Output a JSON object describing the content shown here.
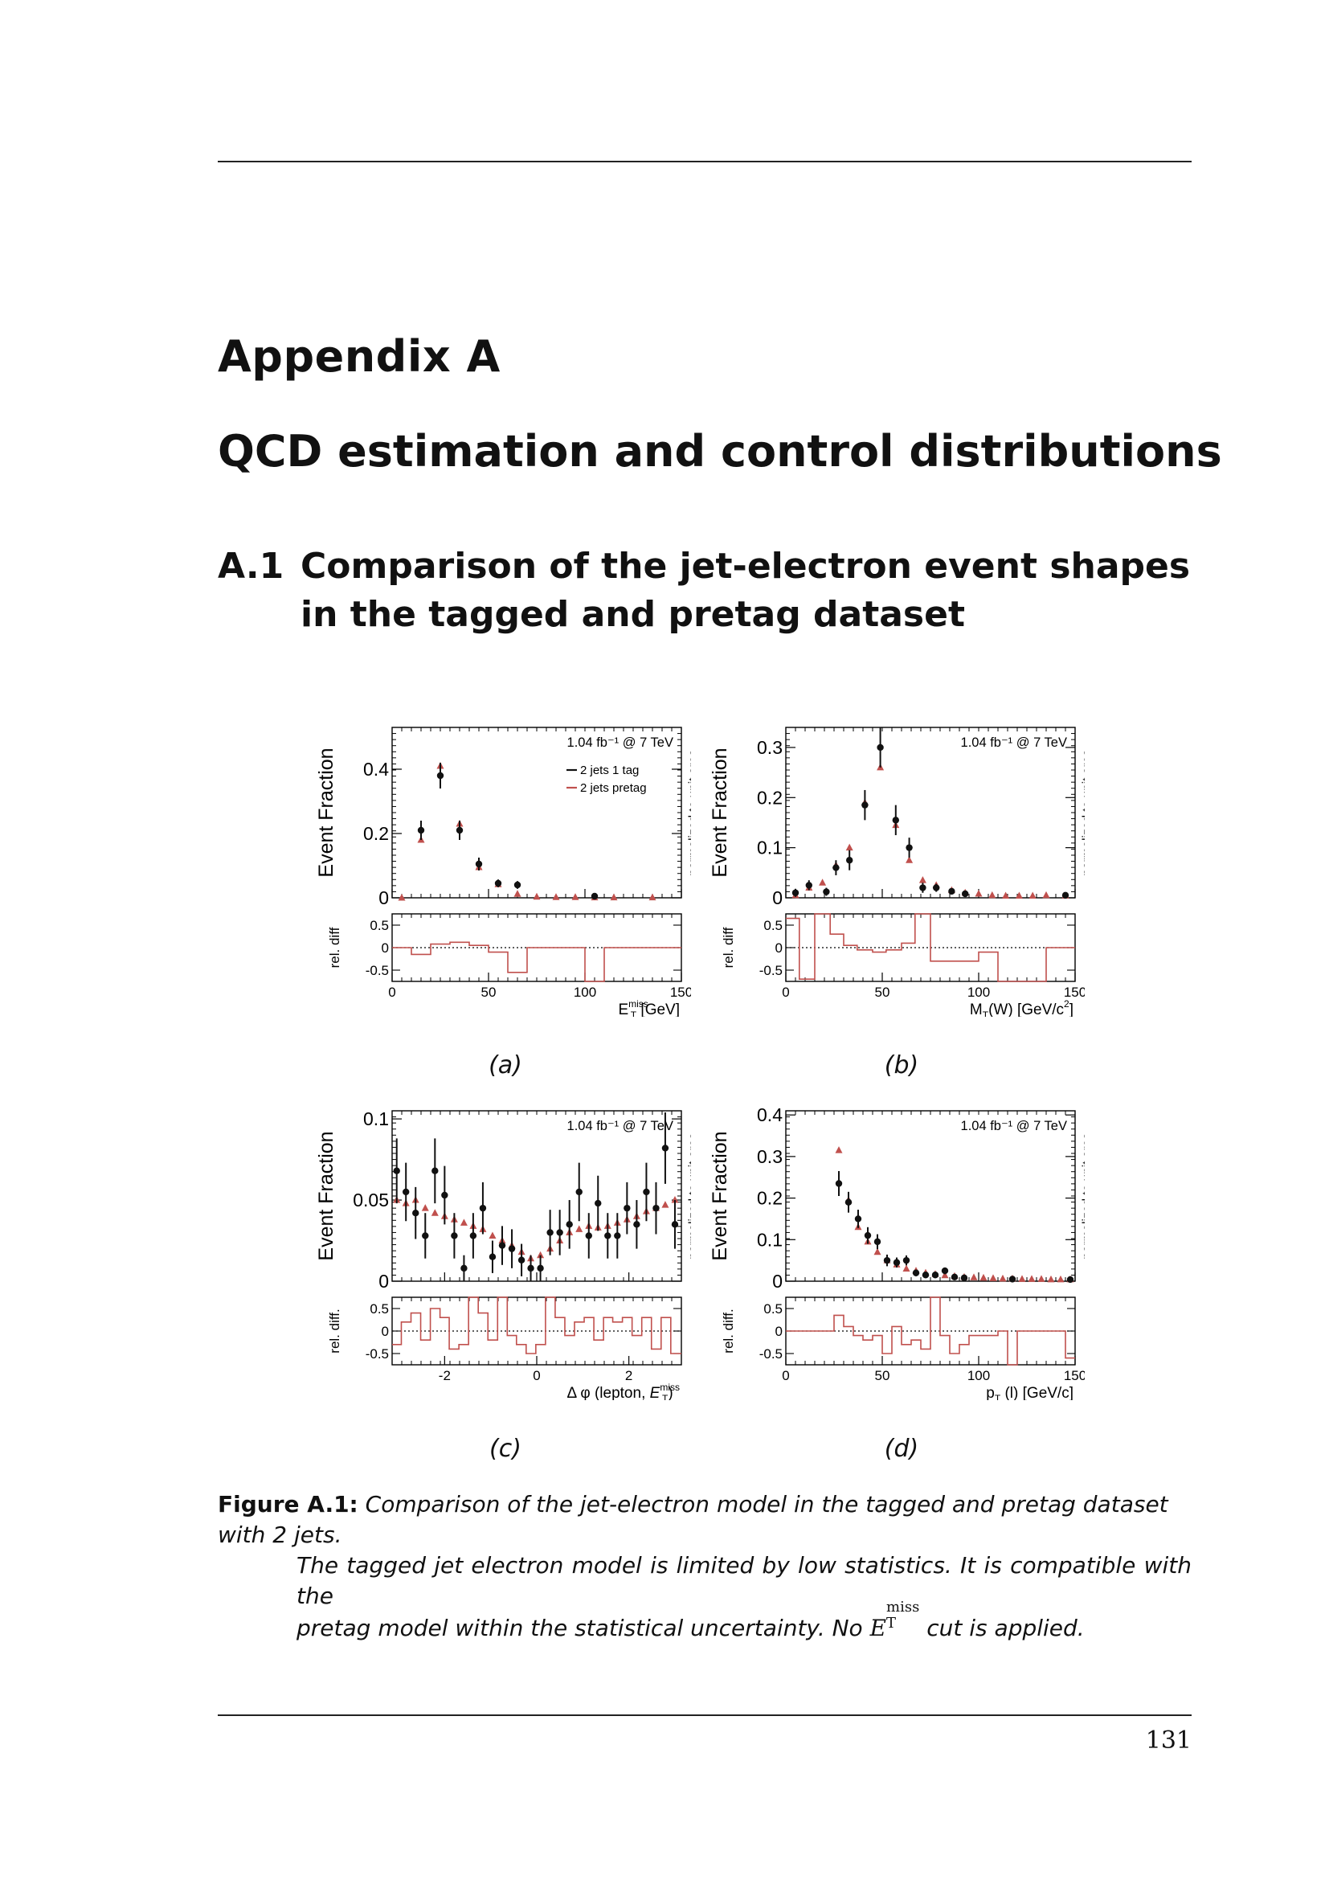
{
  "page": {
    "appendix_label": "Appendix A",
    "chapter_title": "QCD estimation and control distributions",
    "section_number": "A.1",
    "section_title": "Comparison of the jet-electron event shapes in the tagged and pretag dataset",
    "page_number": "131"
  },
  "caption": {
    "label": "Figure A.1:",
    "line1": "Comparison of the jet-electron model in the tagged and pretag dataset with 2 jets.",
    "line2": "The tagged jet electron model is limited by low statistics.  It is compatible with the",
    "line3_pre": "pretag model within the statistical uncertainty.  No ",
    "math_base": "E",
    "math_sup": "miss",
    "math_sub": "T",
    "line3_post": " cut is applied."
  },
  "sublabels": [
    "(a)",
    "(b)",
    "(c)",
    "(d)"
  ],
  "colors": {
    "tagged": "#111111",
    "pretag": "#c0504d"
  },
  "chart_data": [
    {
      "type": "scatter",
      "id": "a",
      "lumi_label": "1.04 fb⁻¹ @ 7 TeV",
      "ylabel": "Event Fraction",
      "ylabel_right": "normalized to unit area",
      "xlabel": "E_T^miss [GeV]",
      "xlabel_base": "E",
      "xlabel_sup": "miss",
      "xlabel_sub": "T",
      "xlabel_post": " [GeV]",
      "xlim": [
        0,
        150
      ],
      "ylim": [
        0,
        0.53
      ],
      "xticks": [
        0,
        50,
        100,
        150
      ],
      "yticks": [
        0,
        0.2,
        0.4
      ],
      "ratio_ylabel": "rel. diff",
      "ratio_ylim": [
        -0.75,
        0.75
      ],
      "ratio_yticks": [
        -0.5,
        0,
        0.5
      ],
      "legend": [
        {
          "name": "2 jets 1 tag"
        },
        {
          "name": "2 jets pretag"
        }
      ],
      "series": [
        {
          "name": "2 jets 1 tag",
          "x": [
            15,
            25,
            35,
            45,
            55,
            65,
            105
          ],
          "y": [
            0.21,
            0.38,
            0.21,
            0.105,
            0.045,
            0.04,
            0.005
          ],
          "err": [
            0.03,
            0.04,
            0.03,
            0.02,
            0.012,
            0.012,
            0.004
          ]
        },
        {
          "name": "2 jets pretag",
          "x": [
            5,
            15,
            25,
            35,
            45,
            55,
            65,
            75,
            85,
            95,
            105,
            115,
            135
          ],
          "y": [
            0.0,
            0.18,
            0.41,
            0.23,
            0.095,
            0.042,
            0.012,
            0.003,
            0.002,
            0.002,
            0.001,
            0.001,
            0.001
          ]
        }
      ],
      "ratio": {
        "edges": [
          0,
          10,
          20,
          30,
          40,
          50,
          60,
          70,
          100,
          110,
          150
        ],
        "values": [
          0,
          -0.15,
          0.08,
          0.12,
          0.05,
          -0.1,
          -0.55,
          0,
          -1.1,
          0
        ]
      }
    },
    {
      "type": "scatter",
      "id": "b",
      "lumi_label": "1.04 fb⁻¹ @ 7 TeV",
      "ylabel": "Event Fraction",
      "ylabel_right": "normalized to unit area",
      "xlabel": "M_T(W) [GeV/c^2]",
      "xlabel_base": "M",
      "xlabel_sub": "T",
      "xlabel_post": "(W) [GeV/c",
      "xlabel_sup2": "2",
      "xlabel_end": "]",
      "xlim": [
        0,
        150
      ],
      "ylim": [
        0,
        0.34
      ],
      "xticks": [
        0,
        50,
        100,
        150
      ],
      "yticks": [
        0,
        0.1,
        0.2,
        0.3
      ],
      "ratio_ylabel": "rel. diff",
      "ratio_ylim": [
        -0.75,
        0.75
      ],
      "ratio_yticks": [
        -0.5,
        0,
        0.5
      ],
      "series": [
        {
          "name": "2 jets 1 tag",
          "x": [
            5,
            12,
            21,
            26,
            33,
            41,
            49,
            57,
            64,
            71,
            78,
            86,
            93,
            145
          ],
          "y": [
            0.01,
            0.025,
            0.012,
            0.06,
            0.075,
            0.185,
            0.3,
            0.155,
            0.1,
            0.02,
            0.02,
            0.013,
            0.008,
            0.005
          ],
          "err": [
            0.008,
            0.01,
            0.008,
            0.015,
            0.02,
            0.03,
            0.04,
            0.03,
            0.02,
            0.01,
            0.008,
            0.006,
            0.004,
            0.003
          ]
        },
        {
          "name": "2 jets pretag",
          "x": [
            5,
            12,
            19,
            26,
            33,
            41,
            49,
            57,
            64,
            71,
            78,
            86,
            93,
            100,
            107,
            114,
            121,
            128,
            135,
            145
          ],
          "y": [
            0.005,
            0.02,
            0.03,
            0.065,
            0.1,
            0.19,
            0.26,
            0.145,
            0.075,
            0.035,
            0.025,
            0.015,
            0.01,
            0.008,
            0.005,
            0.004,
            0.004,
            0.004,
            0.005,
            0.004
          ]
        }
      ],
      "ratio": {
        "edges": [
          0,
          7,
          15,
          23,
          30,
          37,
          45,
          52,
          60,
          67,
          75,
          100,
          110,
          135,
          150
        ],
        "values": [
          0.65,
          -0.7,
          0.8,
          0.3,
          0.05,
          -0.05,
          -0.1,
          -0.05,
          0.1,
          0.9,
          -0.3,
          -0.1,
          -1.2,
          0
        ]
      }
    },
    {
      "type": "scatter",
      "id": "c",
      "lumi_label": "1.04 fb⁻¹ @ 7 TeV",
      "ylabel": "Event Fraction",
      "ylabel_right": "normalized to unit area",
      "xlabel": "Δφ (lepton, E_T^miss)",
      "xlabel_pre": "Δ φ (lepton, ",
      "xlabel_base": "E",
      "xlabel_sup": "miss",
      "xlabel_sub": "T",
      "xlabel_post": ")",
      "xlim": [
        -3.14,
        3.14
      ],
      "ylim": [
        0,
        0.105
      ],
      "xticks": [
        -2,
        0,
        2
      ],
      "yticks": [
        0,
        0.05,
        0.1
      ],
      "ratio_ylabel": "rel. diff.",
      "ratio_ylim": [
        -0.75,
        0.75
      ],
      "ratio_yticks": [
        -0.5,
        0,
        0.5
      ],
      "series": [
        {
          "name": "2 jets 1 tag",
          "x": [
            -3.04,
            -2.84,
            -2.63,
            -2.42,
            -2.21,
            -2.0,
            -1.79,
            -1.58,
            -1.38,
            -1.17,
            -0.96,
            -0.75,
            -0.54,
            -0.33,
            -0.13,
            0.08,
            0.29,
            0.5,
            0.71,
            0.92,
            1.13,
            1.33,
            1.54,
            1.75,
            1.96,
            2.17,
            2.38,
            2.59,
            2.79,
            3.0
          ],
          "y": [
            0.068,
            0.055,
            0.042,
            0.028,
            0.068,
            0.053,
            0.028,
            0.008,
            0.028,
            0.045,
            0.015,
            0.022,
            0.02,
            0.013,
            0.008,
            0.008,
            0.03,
            0.03,
            0.035,
            0.055,
            0.028,
            0.048,
            0.028,
            0.028,
            0.045,
            0.035,
            0.055,
            0.045,
            0.082,
            0.035
          ],
          "err": [
            0.02,
            0.018,
            0.016,
            0.014,
            0.02,
            0.018,
            0.014,
            0.008,
            0.014,
            0.016,
            0.01,
            0.012,
            0.012,
            0.01,
            0.008,
            0.008,
            0.014,
            0.014,
            0.015,
            0.018,
            0.014,
            0.017,
            0.014,
            0.014,
            0.016,
            0.015,
            0.018,
            0.016,
            0.022,
            0.015
          ]
        },
        {
          "name": "2 jets pretag",
          "x": [
            -3.04,
            -2.84,
            -2.63,
            -2.42,
            -2.21,
            -2.0,
            -1.79,
            -1.58,
            -1.38,
            -1.17,
            -0.96,
            -0.75,
            -0.54,
            -0.33,
            -0.13,
            0.08,
            0.29,
            0.5,
            0.71,
            0.92,
            1.13,
            1.33,
            1.54,
            1.75,
            1.96,
            2.17,
            2.38,
            2.59,
            2.79,
            3.0
          ],
          "y": [
            0.05,
            0.048,
            0.05,
            0.045,
            0.042,
            0.04,
            0.038,
            0.036,
            0.034,
            0.032,
            0.028,
            0.025,
            0.022,
            0.018,
            0.014,
            0.016,
            0.02,
            0.025,
            0.03,
            0.032,
            0.034,
            0.033,
            0.034,
            0.036,
            0.038,
            0.04,
            0.043,
            0.045,
            0.047,
            0.05
          ]
        }
      ],
      "ratio": {
        "edges": [
          -3.14,
          -2.94,
          -2.73,
          -2.52,
          -2.31,
          -2.1,
          -1.9,
          -1.69,
          -1.48,
          -1.27,
          -1.06,
          -0.85,
          -0.64,
          -0.44,
          -0.23,
          -0.02,
          0.19,
          0.4,
          0.61,
          0.82,
          1.03,
          1.24,
          1.45,
          1.65,
          1.86,
          2.07,
          2.28,
          2.49,
          2.7,
          2.91,
          3.14
        ],
        "values": [
          -0.3,
          0.2,
          0.4,
          -0.2,
          0.5,
          0.3,
          -0.4,
          -0.3,
          1.0,
          0.4,
          -0.2,
          1.0,
          -0.1,
          -0.3,
          -0.5,
          -0.3,
          1.0,
          0.3,
          -0.1,
          0.2,
          0.3,
          -0.2,
          0.3,
          0.2,
          0.3,
          -0.1,
          0.3,
          -0.4,
          0.3,
          -0.5
        ]
      }
    },
    {
      "type": "scatter",
      "id": "d",
      "lumi_label": "1.04 fb⁻¹ @ 7 TeV",
      "ylabel": "Event Fraction",
      "ylabel_right": "normalized to unit area",
      "xlabel": "p_T (l) [GeV/c]",
      "xlabel_base": "p",
      "xlabel_sub": "T",
      "xlabel_post": " (l) [GeV/c]",
      "xlim": [
        0,
        150
      ],
      "ylim": [
        0,
        0.41
      ],
      "xticks": [
        0,
        50,
        100,
        150
      ],
      "yticks": [
        0,
        0.1,
        0.2,
        0.3,
        0.4
      ],
      "ratio_ylabel": "rel. diff.",
      "ratio_ylim": [
        -0.75,
        0.75
      ],
      "ratio_yticks": [
        -0.5,
        0,
        0.5
      ],
      "series": [
        {
          "name": "2 jets 1 tag",
          "x": [
            27.5,
            32.5,
            37.5,
            42.5,
            47.5,
            52.5,
            57.5,
            62.5,
            67.5,
            72.5,
            77.5,
            82.5,
            87.5,
            92.5,
            117.5,
            147.5
          ],
          "y": [
            0.235,
            0.19,
            0.15,
            0.11,
            0.095,
            0.05,
            0.045,
            0.05,
            0.02,
            0.015,
            0.015,
            0.025,
            0.01,
            0.008,
            0.005,
            0.004
          ],
          "err": [
            0.03,
            0.025,
            0.022,
            0.02,
            0.018,
            0.014,
            0.012,
            0.012,
            0.008,
            0.007,
            0.007,
            0.008,
            0.005,
            0.004,
            0.003,
            0.003
          ]
        },
        {
          "name": "2 jets pretag",
          "x": [
            27.5,
            32.5,
            37.5,
            42.5,
            47.5,
            52.5,
            57.5,
            62.5,
            67.5,
            72.5,
            77.5,
            82.5,
            87.5,
            92.5,
            97.5,
            102.5,
            107.5,
            112.5,
            117.5,
            122.5,
            127.5,
            132.5,
            137.5,
            142.5,
            147.5
          ],
          "y": [
            0.315,
            0.195,
            0.13,
            0.095,
            0.07,
            0.05,
            0.04,
            0.03,
            0.025,
            0.02,
            0.017,
            0.014,
            0.012,
            0.01,
            0.009,
            0.008,
            0.007,
            0.006,
            0.006,
            0.005,
            0.005,
            0.005,
            0.004,
            0.004,
            0.004
          ]
        }
      ],
      "ratio": {
        "edges": [
          0,
          25,
          30,
          35,
          40,
          45,
          50,
          55,
          60,
          65,
          70,
          75,
          80,
          85,
          90,
          95,
          110,
          115,
          120,
          145,
          150
        ],
        "values": [
          0,
          0.35,
          0.1,
          -0.1,
          -0.2,
          -0.1,
          -0.5,
          0.1,
          -0.3,
          -0.2,
          -0.4,
          1.0,
          -0.1,
          -0.5,
          -0.3,
          -0.1,
          0,
          -1.2,
          0,
          -0.6
        ]
      }
    }
  ]
}
